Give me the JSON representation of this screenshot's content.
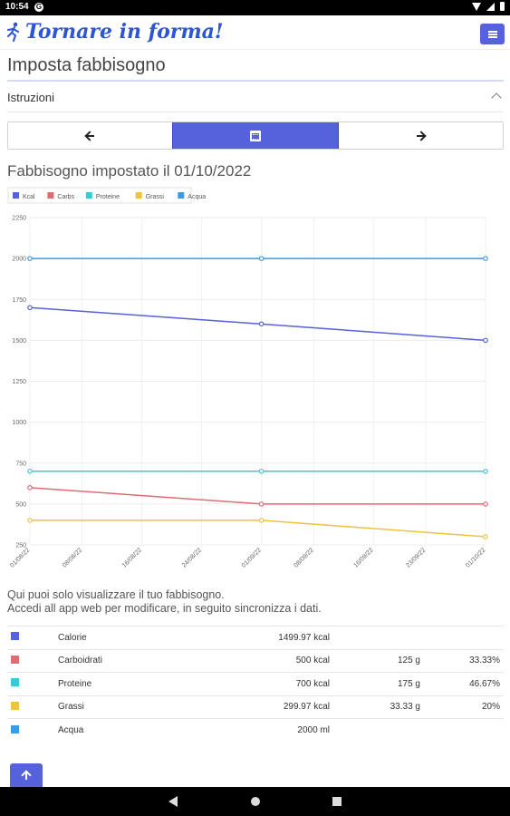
{
  "status_bar": {
    "time": "10:54",
    "g_label": "G"
  },
  "header": {
    "brand": "Tornare in forma!",
    "menu_icon": "menu-icon",
    "brand_color": "#2c55d6"
  },
  "page": {
    "title": "Imposta fabbisogno"
  },
  "accordion": {
    "label": "Istruzioni"
  },
  "chart_heading": "Fabbisogno impostato il 01/10/2022",
  "chart_data": {
    "type": "line",
    "title": "",
    "xlabel": "",
    "ylabel": "",
    "ylim": [
      250,
      2250
    ],
    "yticks": [
      "2250",
      "2000",
      "1750",
      "1500",
      "1250",
      "1000",
      "750",
      "500",
      "250"
    ],
    "x_labels": [
      "01/08/22",
      "08/08/22",
      "16/08/22",
      "24/08/22",
      "01/09/22",
      "08/09/22",
      "16/09/22",
      "23/09/22",
      "01/10/22"
    ],
    "x_label_days": [
      0,
      7,
      15,
      23,
      31,
      38,
      46,
      53,
      61
    ],
    "point_days": [
      0,
      31,
      61
    ],
    "legend_placement": "top-left",
    "grid": true,
    "series": [
      {
        "name": "Kcal",
        "color": "#5661dc",
        "values": [
          1700,
          1600,
          1500
        ]
      },
      {
        "name": "Carbs",
        "color": "#e06b73",
        "values": [
          600,
          500,
          500
        ]
      },
      {
        "name": "Proteine",
        "color": "#3cc9d6",
        "values": [
          700,
          700,
          700
        ]
      },
      {
        "name": "Grassi",
        "color": "#efc23f",
        "values": [
          400,
          400,
          300
        ]
      },
      {
        "name": "Acqua",
        "color": "#3d9be0",
        "values": [
          2000,
          2000,
          2000
        ]
      }
    ]
  },
  "info": {
    "line1": "Qui puoi solo visualizzare il tuo fabbisogno.",
    "line2": "Accedi all app web per modificare, in seguito sincronizza i dati."
  },
  "table": [
    {
      "color": "#5661dc",
      "name": "Calorie",
      "kcal": "1499.97 kcal",
      "grams": "",
      "pct": ""
    },
    {
      "color": "#e06b73",
      "name": "Carboidrati",
      "kcal": "500 kcal",
      "grams": "125 g",
      "pct": "33.33%"
    },
    {
      "color": "#3cc9d6",
      "name": "Proteine",
      "kcal": "700 kcal",
      "grams": "175 g",
      "pct": "46.67%"
    },
    {
      "color": "#efc23f",
      "name": "Grassi",
      "kcal": "299.97 kcal",
      "grams": "33.33 g",
      "pct": "20%"
    },
    {
      "color": "#3d9be0",
      "name": "Acqua",
      "kcal": "2000 ml",
      "grams": "",
      "pct": ""
    }
  ]
}
